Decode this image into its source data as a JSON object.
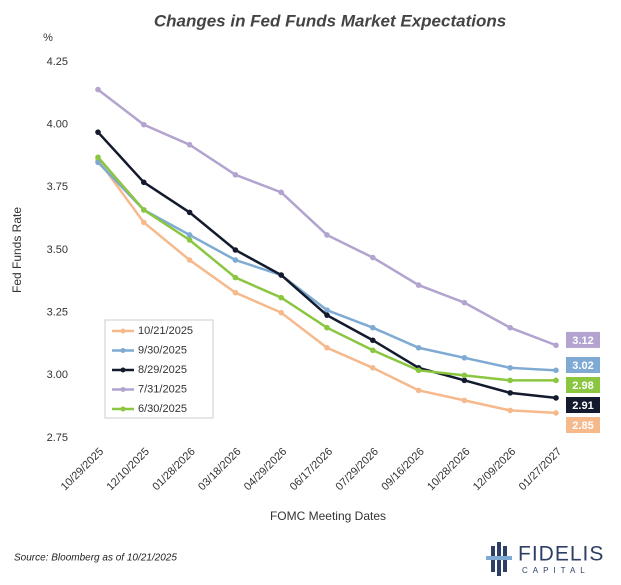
{
  "chart_data": {
    "type": "line",
    "title": "Changes in Fed Funds Market Expectations",
    "y_unit": "%",
    "y_label": "Fed Funds Rate",
    "x_label": "FOMC Meeting Dates",
    "source": "Source: Bloomberg as of 10/21/2025",
    "categories": [
      "10/29/2025",
      "12/10/2025",
      "01/28/2026",
      "03/18/2026",
      "04/29/2026",
      "06/17/2026",
      "07/29/2026",
      "09/16/2026",
      "10/28/2026",
      "12/09/2026",
      "01/27/2027"
    ],
    "ylim": [
      2.75,
      4.25
    ],
    "yticks": [
      2.75,
      {
        "value": 3,
        "label": "3.00"
      },
      3.25,
      {
        "value": 3.5,
        "label": "3.50"
      },
      3.75,
      {
        "value": 4,
        "label": "4.00"
      },
      4.25
    ],
    "grid": false,
    "series": [
      {
        "name": "10/21/2025",
        "color": "#f6b98c",
        "values": [
          3.86,
          3.61,
          3.46,
          3.33,
          3.25,
          3.11,
          3.03,
          2.94,
          2.9,
          2.86,
          2.85
        ]
      },
      {
        "name": "9/30/2025",
        "color": "#7eaad3",
        "values": [
          3.85,
          3.66,
          3.56,
          3.46,
          3.4,
          3.26,
          3.19,
          3.11,
          3.07,
          3.03,
          3.02
        ]
      },
      {
        "name": "8/29/2025",
        "color": "#141a2e",
        "values": [
          3.97,
          3.77,
          3.65,
          3.5,
          3.4,
          3.24,
          3.14,
          3.03,
          2.98,
          2.93,
          2.91
        ]
      },
      {
        "name": "7/31/2025",
        "color": "#b2a3cf",
        "values": [
          4.14,
          4.0,
          3.92,
          3.8,
          3.73,
          3.56,
          3.47,
          3.36,
          3.29,
          3.19,
          3.12
        ]
      },
      {
        "name": "6/30/2025",
        "color": "#8ac640",
        "values": [
          3.87,
          3.66,
          3.54,
          3.39,
          3.31,
          3.19,
          3.1,
          3.02,
          3.0,
          2.98,
          2.98
        ]
      }
    ],
    "end_labels": true
  },
  "logo": {
    "name": "FIDELIS",
    "sub": "CAPITAL"
  }
}
